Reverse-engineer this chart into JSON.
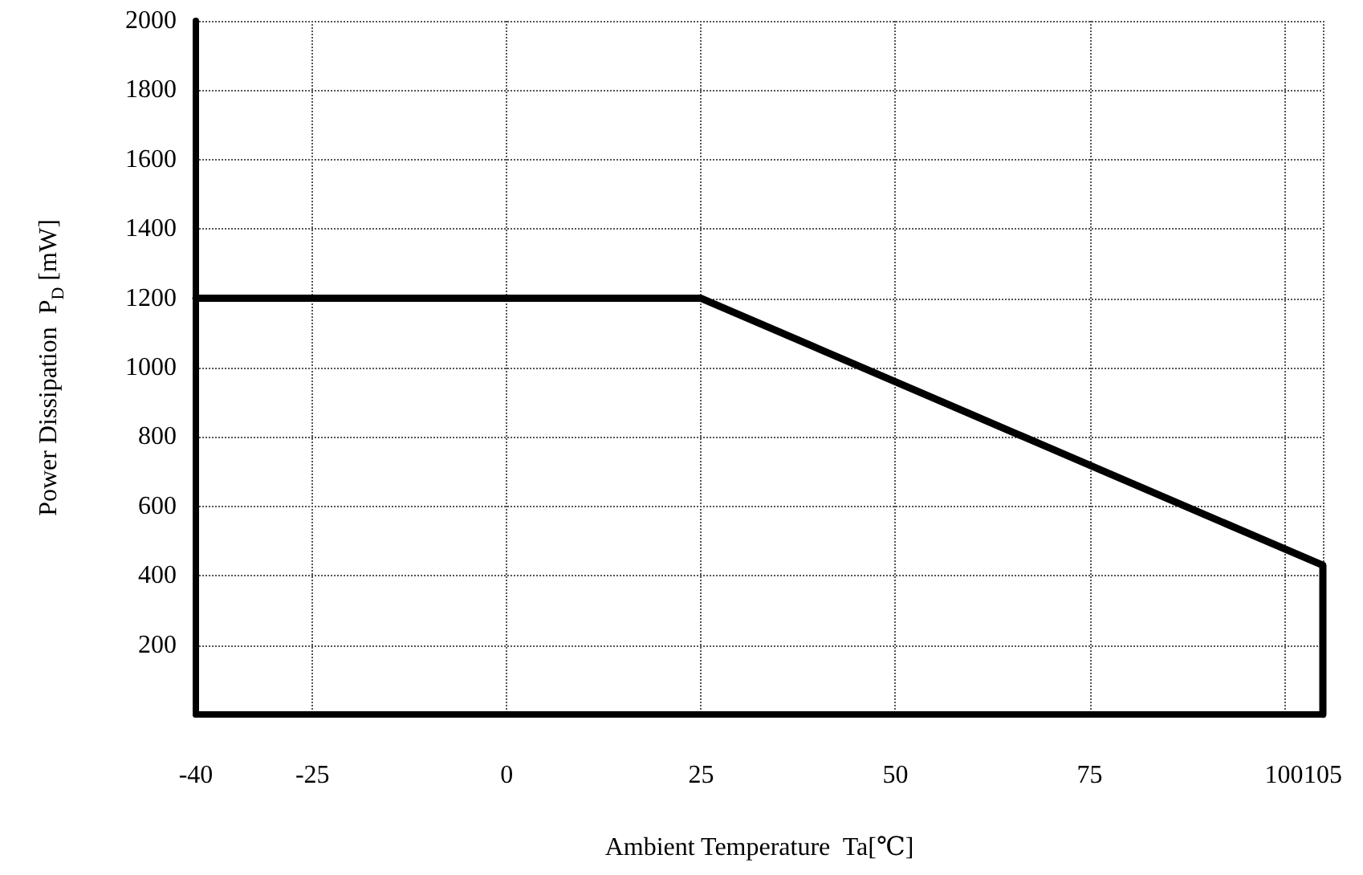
{
  "chart_data": {
    "type": "line",
    "xlabel": "Ambient Temperature  Ta[℃]",
    "ylabel": "Power Dissipation  P$_{D}$ [mW]",
    "x": [
      -40,
      25,
      105,
      105
    ],
    "series": [
      {
        "color": "#000000",
        "values": [
          1200,
          1200,
          430,
          0
        ]
      }
    ],
    "xlim": [
      -40,
      105
    ],
    "xticks": [
      -40,
      -25,
      0,
      25,
      50,
      75,
      100,
      105
    ],
    "ylim": [
      0,
      2000
    ],
    "yticks": [
      200,
      400,
      600,
      800,
      1000,
      1200,
      1400,
      1600,
      1800,
      2000
    ],
    "grid": true,
    "marker": "none",
    "line_style": "solid"
  }
}
